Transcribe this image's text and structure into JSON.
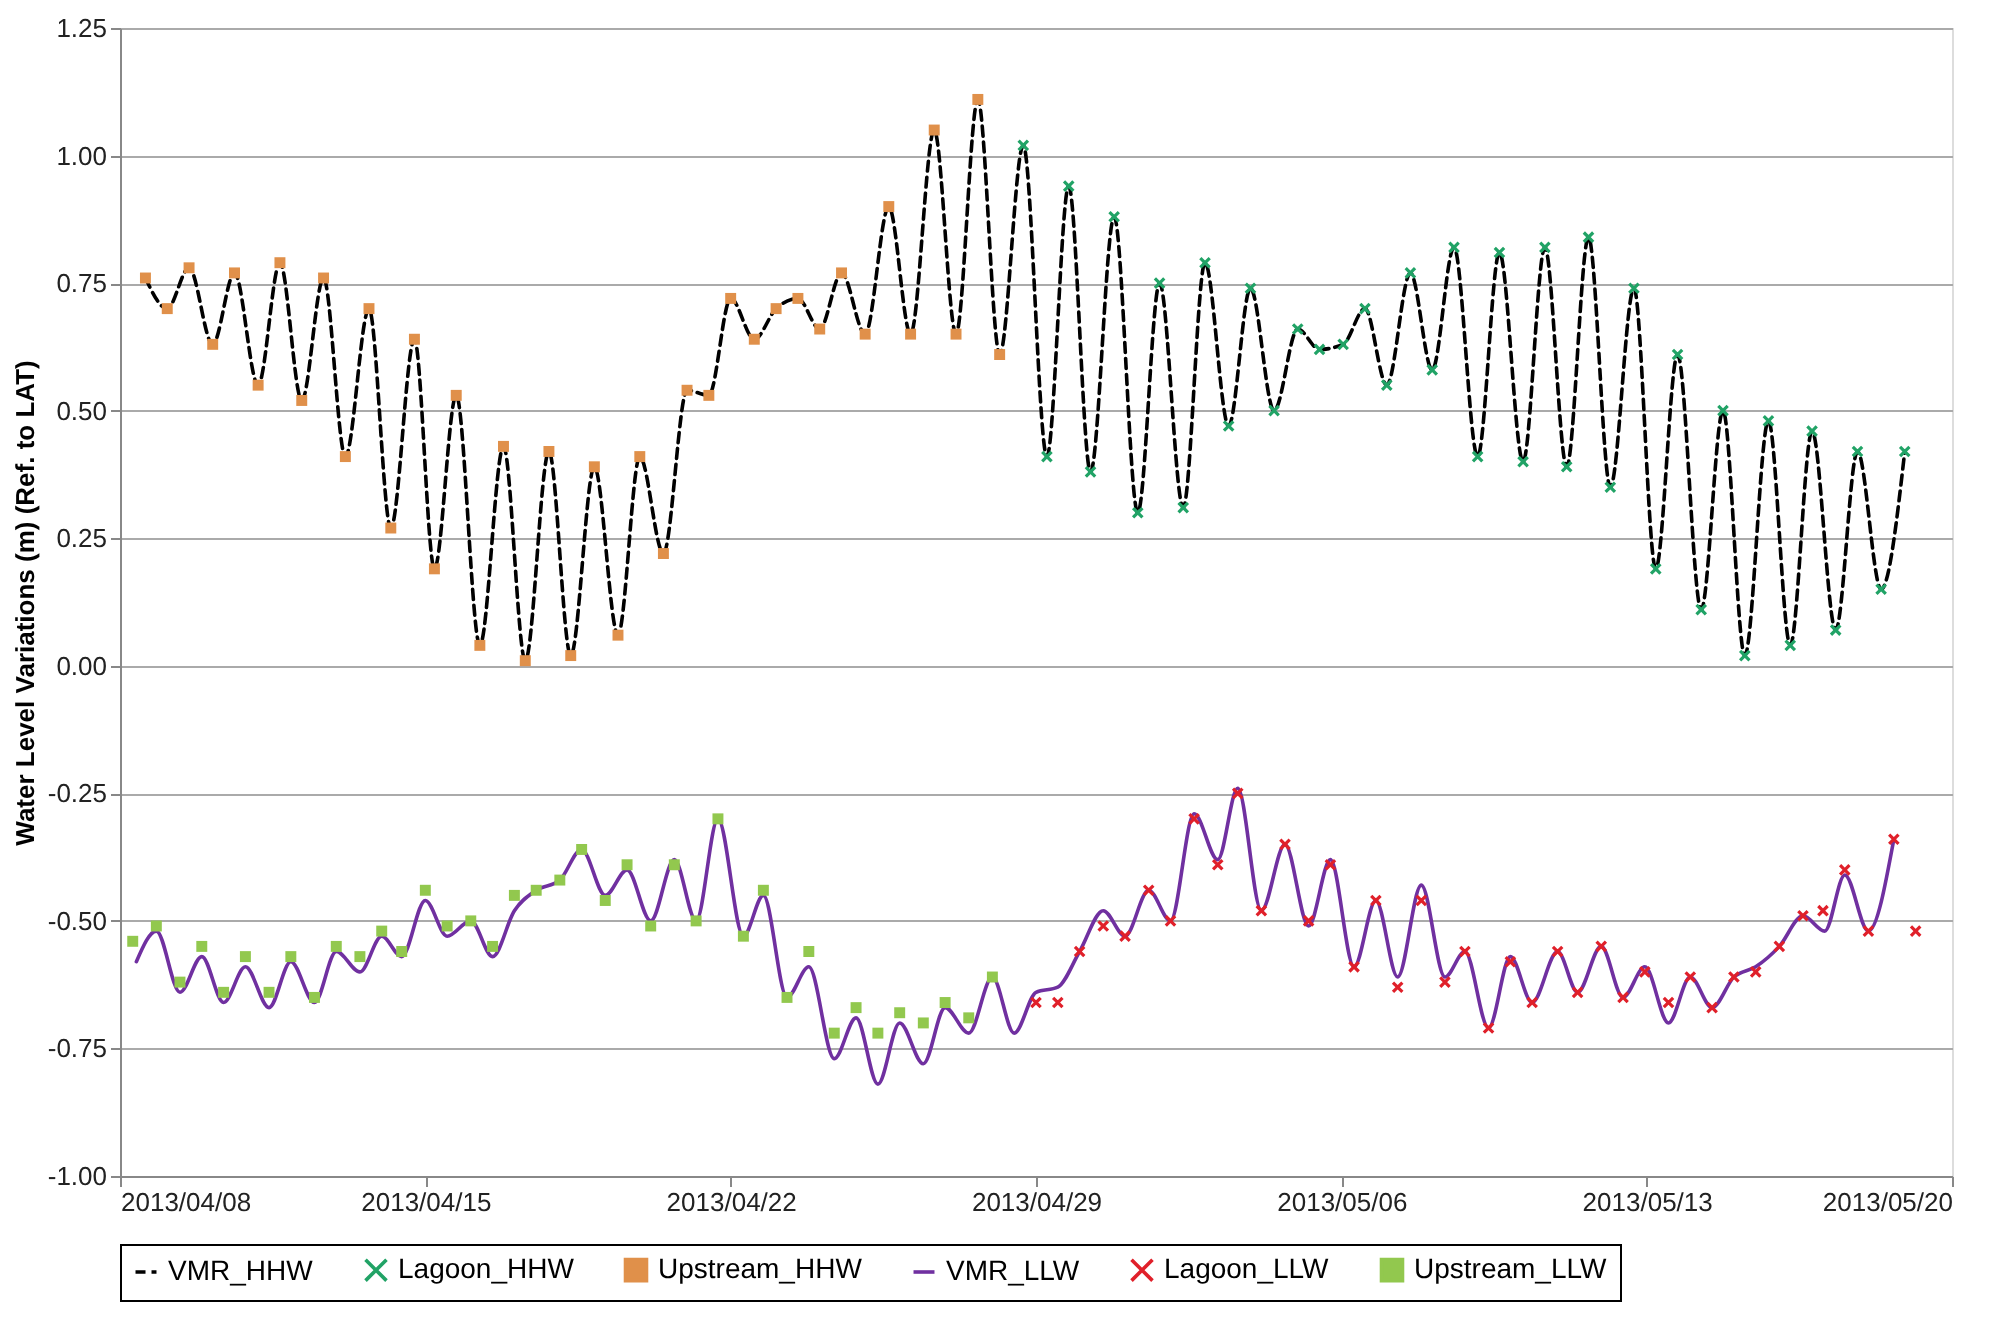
{
  "chart_data": {
    "type": "line",
    "ylabel": "Water Level Variations (m) (Ref. to LAT)",
    "xlim": [
      "2013-04-08",
      "2013-05-20"
    ],
    "xticks": [
      {
        "value": "2013-04-08",
        "label": "2013/04/08"
      },
      {
        "value": "2013-04-15",
        "label": "2013/04/15"
      },
      {
        "value": "2013-04-22",
        "label": "2013/04/22"
      },
      {
        "value": "2013-04-29",
        "label": "2013/04/29"
      },
      {
        "value": "2013-05-06",
        "label": "2013/05/06"
      },
      {
        "value": "2013-05-13",
        "label": "2013/05/13"
      },
      {
        "value": "2013-05-20",
        "label": "2013/05/20"
      }
    ],
    "ylim": [
      -1.0,
      1.25
    ],
    "yticks": [
      {
        "value": -1.0,
        "label": "-1.00"
      },
      {
        "value": -0.75,
        "label": "-0.75"
      },
      {
        "value": -0.5,
        "label": "-0.50"
      },
      {
        "value": -0.25,
        "label": "-0.25"
      },
      {
        "value": 0.0,
        "label": "0.00"
      },
      {
        "value": 0.25,
        "label": "0.25"
      },
      {
        "value": 0.5,
        "label": "0.50"
      },
      {
        "value": 0.75,
        "label": "0.75"
      },
      {
        "value": 1.0,
        "label": "1.00"
      },
      {
        "value": 1.25,
        "label": "1.25"
      }
    ],
    "grid": "y",
    "legend": "bottom",
    "series": [
      {
        "name": "VMR_HHW",
        "line_style": "dashed",
        "color": "#000000",
        "x": [
          "2013-04-08T14:00",
          "2013-04-09T02:00",
          "2013-04-09T14:00",
          "2013-04-10T03:00",
          "2013-04-10T15:00",
          "2013-04-11T04:00",
          "2013-04-11T16:00",
          "2013-04-12T04:00",
          "2013-04-12T16:00",
          "2013-04-13T04:00",
          "2013-04-13T17:00",
          "2013-04-14T05:00",
          "2013-04-14T18:00",
          "2013-04-15T05:00",
          "2013-04-15T17:00",
          "2013-04-16T06:00",
          "2013-04-16T19:00",
          "2013-04-17T07:00",
          "2013-04-17T20:00",
          "2013-04-18T08:00",
          "2013-04-18T21:00",
          "2013-04-19T10:00",
          "2013-04-19T22:00",
          "2013-04-20T11:00",
          "2013-04-21T00:00",
          "2013-04-21T12:00",
          "2013-04-22T00:00",
          "2013-04-22T13:00",
          "2013-04-23T01:00",
          "2013-04-23T13:00",
          "2013-04-24T01:00",
          "2013-04-24T13:00",
          "2013-04-25T02:00",
          "2013-04-25T15:00",
          "2013-04-26T03:00",
          "2013-04-26T16:00",
          "2013-04-27T04:00",
          "2013-04-27T16:00",
          "2013-04-28T04:00",
          "2013-04-28T17:00",
          "2013-04-29T06:00",
          "2013-04-29T18:00",
          "2013-04-30T06:00",
          "2013-04-30T19:00",
          "2013-05-01T08:00",
          "2013-05-01T20:00",
          "2013-05-02T09:00",
          "2013-05-02T21:00",
          "2013-05-03T10:00",
          "2013-05-03T22:00",
          "2013-05-04T11:00",
          "2013-05-05T00:00",
          "2013-05-05T12:00",
          "2013-05-06T01:00",
          "2013-05-06T13:00",
          "2013-05-07T01:00",
          "2013-05-07T14:00",
          "2013-05-08T02:00",
          "2013-05-08T14:00",
          "2013-05-09T03:00",
          "2013-05-09T15:00",
          "2013-05-10T04:00",
          "2013-05-10T16:00",
          "2013-05-11T04:00",
          "2013-05-11T16:00",
          "2013-05-12T04:00",
          "2013-05-12T17:00",
          "2013-05-13T05:00",
          "2013-05-13T17:00",
          "2013-05-14T06:00",
          "2013-05-14T18:00",
          "2013-05-15T06:00",
          "2013-05-15T19:00",
          "2013-05-16T07:00",
          "2013-05-16T19:00",
          "2013-05-17T08:00",
          "2013-05-17T20:00",
          "2013-05-18T09:00",
          "2013-05-18T22:00"
        ],
        "values": [
          0.76,
          0.7,
          0.78,
          0.63,
          0.77,
          0.55,
          0.79,
          0.52,
          0.76,
          0.41,
          0.7,
          0.27,
          0.64,
          0.19,
          0.53,
          0.04,
          0.43,
          0.01,
          0.42,
          0.02,
          0.39,
          0.06,
          0.41,
          0.22,
          0.54,
          0.53,
          0.72,
          0.64,
          0.7,
          0.72,
          0.66,
          0.77,
          0.65,
          0.9,
          0.65,
          1.05,
          0.65,
          1.11,
          0.61,
          1.02,
          0.41,
          0.94,
          0.38,
          0.88,
          0.3,
          0.75,
          0.31,
          0.79,
          0.47,
          0.74,
          0.5,
          0.66,
          0.62,
          0.63,
          0.7,
          0.55,
          0.77,
          0.58,
          0.82,
          0.41,
          0.81,
          0.4,
          0.82,
          0.39,
          0.84,
          0.35,
          0.74,
          0.19,
          0.61,
          0.11,
          0.5,
          0.02,
          0.48,
          0.04,
          0.46,
          0.07,
          0.42,
          0.15,
          0.42
        ]
      },
      {
        "name": "Lagoon_HHW",
        "type": "scatter",
        "marker": "cross",
        "color": "#21a366",
        "x": [
          "2013-04-28T17:00",
          "2013-04-29T06:00",
          "2013-04-29T18:00",
          "2013-04-30T06:00",
          "2013-04-30T19:00",
          "2013-05-01T08:00",
          "2013-05-01T20:00",
          "2013-05-02T09:00",
          "2013-05-02T21:00",
          "2013-05-03T10:00",
          "2013-05-03T22:00",
          "2013-05-04T11:00",
          "2013-05-05T00:00",
          "2013-05-05T12:00",
          "2013-05-06T01:00",
          "2013-05-06T13:00",
          "2013-05-07T01:00",
          "2013-05-07T14:00",
          "2013-05-08T02:00",
          "2013-05-08T14:00",
          "2013-05-09T03:00",
          "2013-05-09T15:00",
          "2013-05-10T04:00",
          "2013-05-10T16:00",
          "2013-05-11T04:00",
          "2013-05-11T16:00",
          "2013-05-12T04:00",
          "2013-05-12T17:00",
          "2013-05-13T05:00",
          "2013-05-13T17:00",
          "2013-05-14T06:00",
          "2013-05-14T18:00",
          "2013-05-15T06:00",
          "2013-05-15T19:00",
          "2013-05-16T07:00",
          "2013-05-16T19:00",
          "2013-05-17T08:00",
          "2013-05-17T20:00",
          "2013-05-18T09:00",
          "2013-05-18T22:00"
        ],
        "values": [
          1.02,
          0.41,
          0.94,
          0.38,
          0.88,
          0.3,
          0.75,
          0.31,
          0.79,
          0.47,
          0.74,
          0.5,
          0.66,
          0.62,
          0.63,
          0.7,
          0.55,
          0.77,
          0.58,
          0.82,
          0.41,
          0.81,
          0.4,
          0.82,
          0.39,
          0.84,
          0.35,
          0.74,
          0.19,
          0.61,
          0.11,
          0.5,
          0.02,
          0.48,
          0.04,
          0.46,
          0.07,
          0.42,
          0.15,
          0.42
        ]
      },
      {
        "name": "Upstream_HHW",
        "type": "scatter",
        "marker": "square",
        "color": "#e0904a",
        "x": [
          "2013-04-08T14:00",
          "2013-04-09T02:00",
          "2013-04-09T14:00",
          "2013-04-10T03:00",
          "2013-04-10T15:00",
          "2013-04-11T04:00",
          "2013-04-11T16:00",
          "2013-04-12T04:00",
          "2013-04-12T16:00",
          "2013-04-13T04:00",
          "2013-04-13T17:00",
          "2013-04-14T05:00",
          "2013-04-14T18:00",
          "2013-04-15T05:00",
          "2013-04-15T17:00",
          "2013-04-16T06:00",
          "2013-04-16T19:00",
          "2013-04-17T07:00",
          "2013-04-17T20:00",
          "2013-04-18T08:00",
          "2013-04-18T21:00",
          "2013-04-19T10:00",
          "2013-04-19T22:00",
          "2013-04-20T11:00",
          "2013-04-21T00:00",
          "2013-04-21T12:00",
          "2013-04-22T00:00",
          "2013-04-22T13:00",
          "2013-04-23T01:00",
          "2013-04-23T13:00",
          "2013-04-24T01:00",
          "2013-04-24T13:00",
          "2013-04-25T02:00",
          "2013-04-25T15:00",
          "2013-04-26T03:00",
          "2013-04-26T16:00",
          "2013-04-27T04:00",
          "2013-04-27T16:00",
          "2013-04-28T04:00"
        ],
        "values": [
          0.76,
          0.7,
          0.78,
          0.63,
          0.77,
          0.55,
          0.79,
          0.52,
          0.76,
          0.41,
          0.7,
          0.27,
          0.64,
          0.19,
          0.53,
          0.04,
          0.43,
          0.01,
          0.42,
          0.02,
          0.39,
          0.06,
          0.41,
          0.22,
          0.54,
          0.53,
          0.72,
          0.64,
          0.7,
          0.72,
          0.66,
          0.77,
          0.65,
          0.9,
          0.65,
          1.05,
          0.65,
          1.11,
          0.61
        ]
      },
      {
        "name": "VMR_LLW",
        "line_style": "solid",
        "color": "#7030a0",
        "x": [
          "2013-04-08T09:00",
          "2013-04-08T20:00",
          "2013-04-09T09:00",
          "2013-04-09T21:00",
          "2013-04-10T09:00",
          "2013-04-10T21:00",
          "2013-04-11T10:00",
          "2013-04-11T22:00",
          "2013-04-12T11:00",
          "2013-04-12T23:00",
          "2013-04-13T12:00",
          "2013-04-14T00:00",
          "2013-04-14T11:00",
          "2013-04-15T00:00",
          "2013-04-15T12:00",
          "2013-04-16T01:00",
          "2013-04-16T13:00",
          "2013-04-17T01:00",
          "2013-04-17T13:00",
          "2013-04-18T02:00",
          "2013-04-18T14:00",
          "2013-04-19T03:00",
          "2013-04-19T15:00",
          "2013-04-20T04:00",
          "2013-04-20T17:00",
          "2013-04-21T05:00",
          "2013-04-21T17:00",
          "2013-04-22T07:00",
          "2013-04-22T18:00",
          "2013-04-23T07:00",
          "2013-04-23T19:00",
          "2013-04-24T09:00",
          "2013-04-24T21:00",
          "2013-04-25T09:00",
          "2013-04-25T21:00",
          "2013-04-26T10:00",
          "2013-04-26T22:00",
          "2013-04-27T11:00",
          "2013-04-28T00:00",
          "2013-04-28T12:00",
          "2013-04-29T00:00",
          "2013-04-29T12:00",
          "2013-04-30T00:00",
          "2013-04-30T13:00",
          "2013-05-01T01:00",
          "2013-05-01T14:00",
          "2013-05-02T02:00",
          "2013-05-02T15:00",
          "2013-05-03T04:00",
          "2013-05-03T15:00",
          "2013-05-04T04:00",
          "2013-05-04T17:00",
          "2013-05-05T06:00",
          "2013-05-05T18:00",
          "2013-05-06T07:00",
          "2013-05-06T19:00",
          "2013-05-07T07:00",
          "2013-05-07T20:00",
          "2013-05-08T09:00",
          "2013-05-08T20:00",
          "2013-05-09T09:00",
          "2013-05-09T21:00",
          "2013-05-10T09:00",
          "2013-05-10T23:00",
          "2013-05-11T10:00",
          "2013-05-11T23:00",
          "2013-05-12T11:00",
          "2013-05-12T23:00",
          "2013-05-13T12:00",
          "2013-05-14T00:00",
          "2013-05-14T12:00",
          "2013-05-15T00:00",
          "2013-05-15T12:00",
          "2013-05-16T01:00",
          "2013-05-16T14:00",
          "2013-05-17T02:00",
          "2013-05-17T13:00",
          "2013-05-18T02:00",
          "2013-05-18T16:00"
        ],
        "values": [
          -0.58,
          -0.52,
          -0.64,
          -0.57,
          -0.66,
          -0.59,
          -0.67,
          -0.58,
          -0.66,
          -0.56,
          -0.6,
          -0.53,
          -0.57,
          -0.46,
          -0.53,
          -0.5,
          -0.57,
          -0.48,
          -0.44,
          -0.42,
          -0.36,
          -0.45,
          -0.4,
          -0.5,
          -0.38,
          -0.5,
          -0.3,
          -0.53,
          -0.45,
          -0.65,
          -0.59,
          -0.77,
          -0.69,
          -0.82,
          -0.7,
          -0.78,
          -0.67,
          -0.72,
          -0.61,
          -0.72,
          -0.64,
          -0.63,
          -0.56,
          -0.48,
          -0.53,
          -0.44,
          -0.5,
          -0.29,
          -0.38,
          -0.24,
          -0.48,
          -0.35,
          -0.51,
          -0.38,
          -0.59,
          -0.46,
          -0.61,
          -0.43,
          -0.61,
          -0.56,
          -0.71,
          -0.57,
          -0.66,
          -0.56,
          -0.64,
          -0.55,
          -0.65,
          -0.59,
          -0.7,
          -0.61,
          -0.67,
          -0.61,
          -0.59,
          -0.55,
          -0.49,
          -0.52,
          -0.41,
          -0.52,
          -0.34
        ]
      },
      {
        "name": "Lagoon_LLW",
        "type": "scatter",
        "marker": "cross",
        "color": "#e0202a",
        "x": [
          "2013-04-29T00:00",
          "2013-04-29T12:00",
          "2013-04-30T00:00",
          "2013-04-30T13:00",
          "2013-05-01T01:00",
          "2013-05-01T14:00",
          "2013-05-02T02:00",
          "2013-05-02T15:00",
          "2013-05-03T04:00",
          "2013-05-03T15:00",
          "2013-05-04T04:00",
          "2013-05-04T17:00",
          "2013-05-05T06:00",
          "2013-05-05T18:00",
          "2013-05-06T07:00",
          "2013-05-06T19:00",
          "2013-05-07T07:00",
          "2013-05-07T20:00",
          "2013-05-08T09:00",
          "2013-05-08T20:00",
          "2013-05-09T09:00",
          "2013-05-09T21:00",
          "2013-05-10T09:00",
          "2013-05-10T23:00",
          "2013-05-11T10:00",
          "2013-05-11T23:00",
          "2013-05-12T11:00",
          "2013-05-12T23:00",
          "2013-05-13T12:00",
          "2013-05-14T00:00",
          "2013-05-14T12:00",
          "2013-05-15T00:00",
          "2013-05-15T12:00",
          "2013-05-16T01:00",
          "2013-05-16T14:00",
          "2013-05-17T01:00",
          "2013-05-17T13:00",
          "2013-05-18T02:00",
          "2013-05-18T16:00",
          "2013-05-19T04:00"
        ],
        "values": [
          -0.66,
          -0.66,
          -0.56,
          -0.51,
          -0.53,
          -0.44,
          -0.5,
          -0.3,
          -0.39,
          -0.25,
          -0.48,
          -0.35,
          -0.5,
          -0.39,
          -0.59,
          -0.46,
          -0.63,
          -0.46,
          -0.62,
          -0.56,
          -0.71,
          -0.58,
          -0.66,
          -0.56,
          -0.64,
          -0.55,
          -0.65,
          -0.6,
          -0.66,
          -0.61,
          -0.67,
          -0.61,
          -0.6,
          -0.55,
          -0.49,
          -0.48,
          -0.4,
          -0.52,
          -0.34,
          -0.52
        ]
      },
      {
        "name": "Upstream_LLW",
        "type": "scatter",
        "marker": "square",
        "color": "#92c84e",
        "x": [
          "2013-04-08T07:00",
          "2013-04-08T20:00",
          "2013-04-09T09:00",
          "2013-04-09T21:00",
          "2013-04-10T09:00",
          "2013-04-10T21:00",
          "2013-04-11T10:00",
          "2013-04-11T22:00",
          "2013-04-12T11:00",
          "2013-04-12T23:00",
          "2013-04-13T12:00",
          "2013-04-14T00:00",
          "2013-04-14T11:00",
          "2013-04-15T00:00",
          "2013-04-15T12:00",
          "2013-04-16T01:00",
          "2013-04-16T13:00",
          "2013-04-17T01:00",
          "2013-04-17T13:00",
          "2013-04-18T02:00",
          "2013-04-18T14:00",
          "2013-04-19T03:00",
          "2013-04-19T15:00",
          "2013-04-20T04:00",
          "2013-04-20T17:00",
          "2013-04-21T05:00",
          "2013-04-21T17:00",
          "2013-04-22T07:00",
          "2013-04-22T18:00",
          "2013-04-23T07:00",
          "2013-04-23T19:00",
          "2013-04-24T09:00",
          "2013-04-24T21:00",
          "2013-04-25T09:00",
          "2013-04-25T21:00",
          "2013-04-26T10:00",
          "2013-04-26T22:00",
          "2013-04-27T11:00",
          "2013-04-28T00:00"
        ],
        "values": [
          -0.54,
          -0.51,
          -0.62,
          -0.55,
          -0.64,
          -0.57,
          -0.64,
          -0.57,
          -0.65,
          -0.55,
          -0.57,
          -0.52,
          -0.56,
          -0.44,
          -0.51,
          -0.5,
          -0.55,
          -0.45,
          -0.44,
          -0.42,
          -0.36,
          -0.46,
          -0.39,
          -0.51,
          -0.39,
          -0.5,
          -0.3,
          -0.53,
          -0.44,
          -0.65,
          -0.56,
          -0.72,
          -0.67,
          -0.72,
          -0.68,
          -0.7,
          -0.66,
          -0.69,
          -0.61
        ]
      }
    ]
  }
}
